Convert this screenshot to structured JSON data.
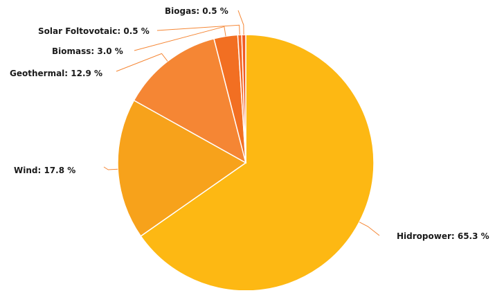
{
  "chart_data": {
    "type": "pie",
    "title": "",
    "slices": [
      {
        "label": "Hidropower",
        "value": 65.3,
        "display": "Hidropower: 65.3 %",
        "color": "#FDB813"
      },
      {
        "label": "Wind",
        "value": 17.8,
        "display": "Wind: 17.8 %",
        "color": "#F7A21B"
      },
      {
        "label": "Geothermal",
        "value": 12.9,
        "display": "Geothermal: 12.9 %",
        "color": "#F58634"
      },
      {
        "label": "Biomass",
        "value": 3.0,
        "display": "Biomass: 3.0 %",
        "color": "#F26F22"
      },
      {
        "label": "Solar Foltovotaic",
        "value": 0.5,
        "display": "Solar Foltovotaic: 0.5 %",
        "color": "#F26522"
      },
      {
        "label": "Biogas",
        "value": 0.5,
        "display": "Biogas: 0.5 %",
        "color": "#F15A22"
      }
    ],
    "legend": "none",
    "data_labels": "outside with connector lines",
    "connector_color": "#F58634",
    "slice_border_color": "#ffffff"
  }
}
